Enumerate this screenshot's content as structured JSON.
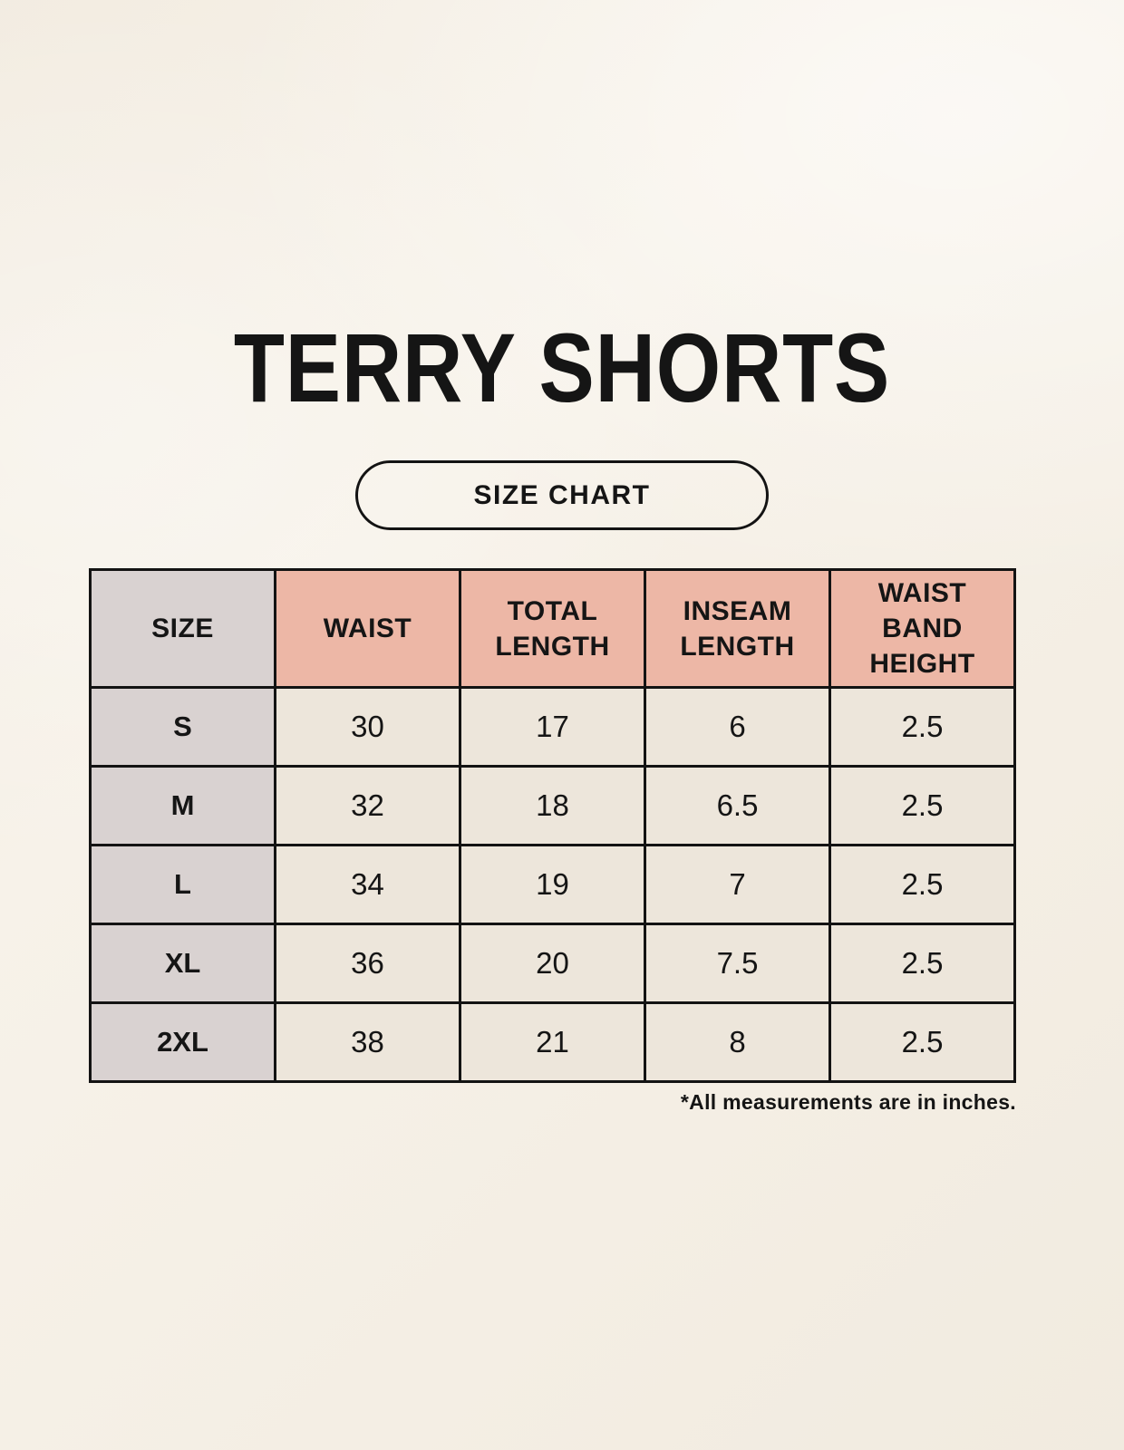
{
  "page": {
    "title": "TERRY SHORTS",
    "size_chart_button_label": "SIZE CHART",
    "footnote": "*All measurements are in inches."
  },
  "colors": {
    "background": "#f7f2e9",
    "header_pink": "#edb7a6",
    "size_column_gray": "#d9d2d1",
    "cell_cream": "#ede6db",
    "border_black": "#131313",
    "text_black": "#151515"
  },
  "table": {
    "type": "table",
    "columns": [
      "SIZE",
      "WAIST",
      "TOTAL LENGTH",
      "INSEAM LENGTH",
      "WAIST BAND HEIGHT"
    ],
    "rows": [
      [
        "S",
        "30",
        "17",
        "6",
        "2.5"
      ],
      [
        "M",
        "32",
        "18",
        "6.5",
        "2.5"
      ],
      [
        "L",
        "34",
        "19",
        "7",
        "2.5"
      ],
      [
        "XL",
        "36",
        "20",
        "7.5",
        "2.5"
      ],
      [
        "2XL",
        "38",
        "21",
        "8",
        "2.5"
      ]
    ]
  }
}
